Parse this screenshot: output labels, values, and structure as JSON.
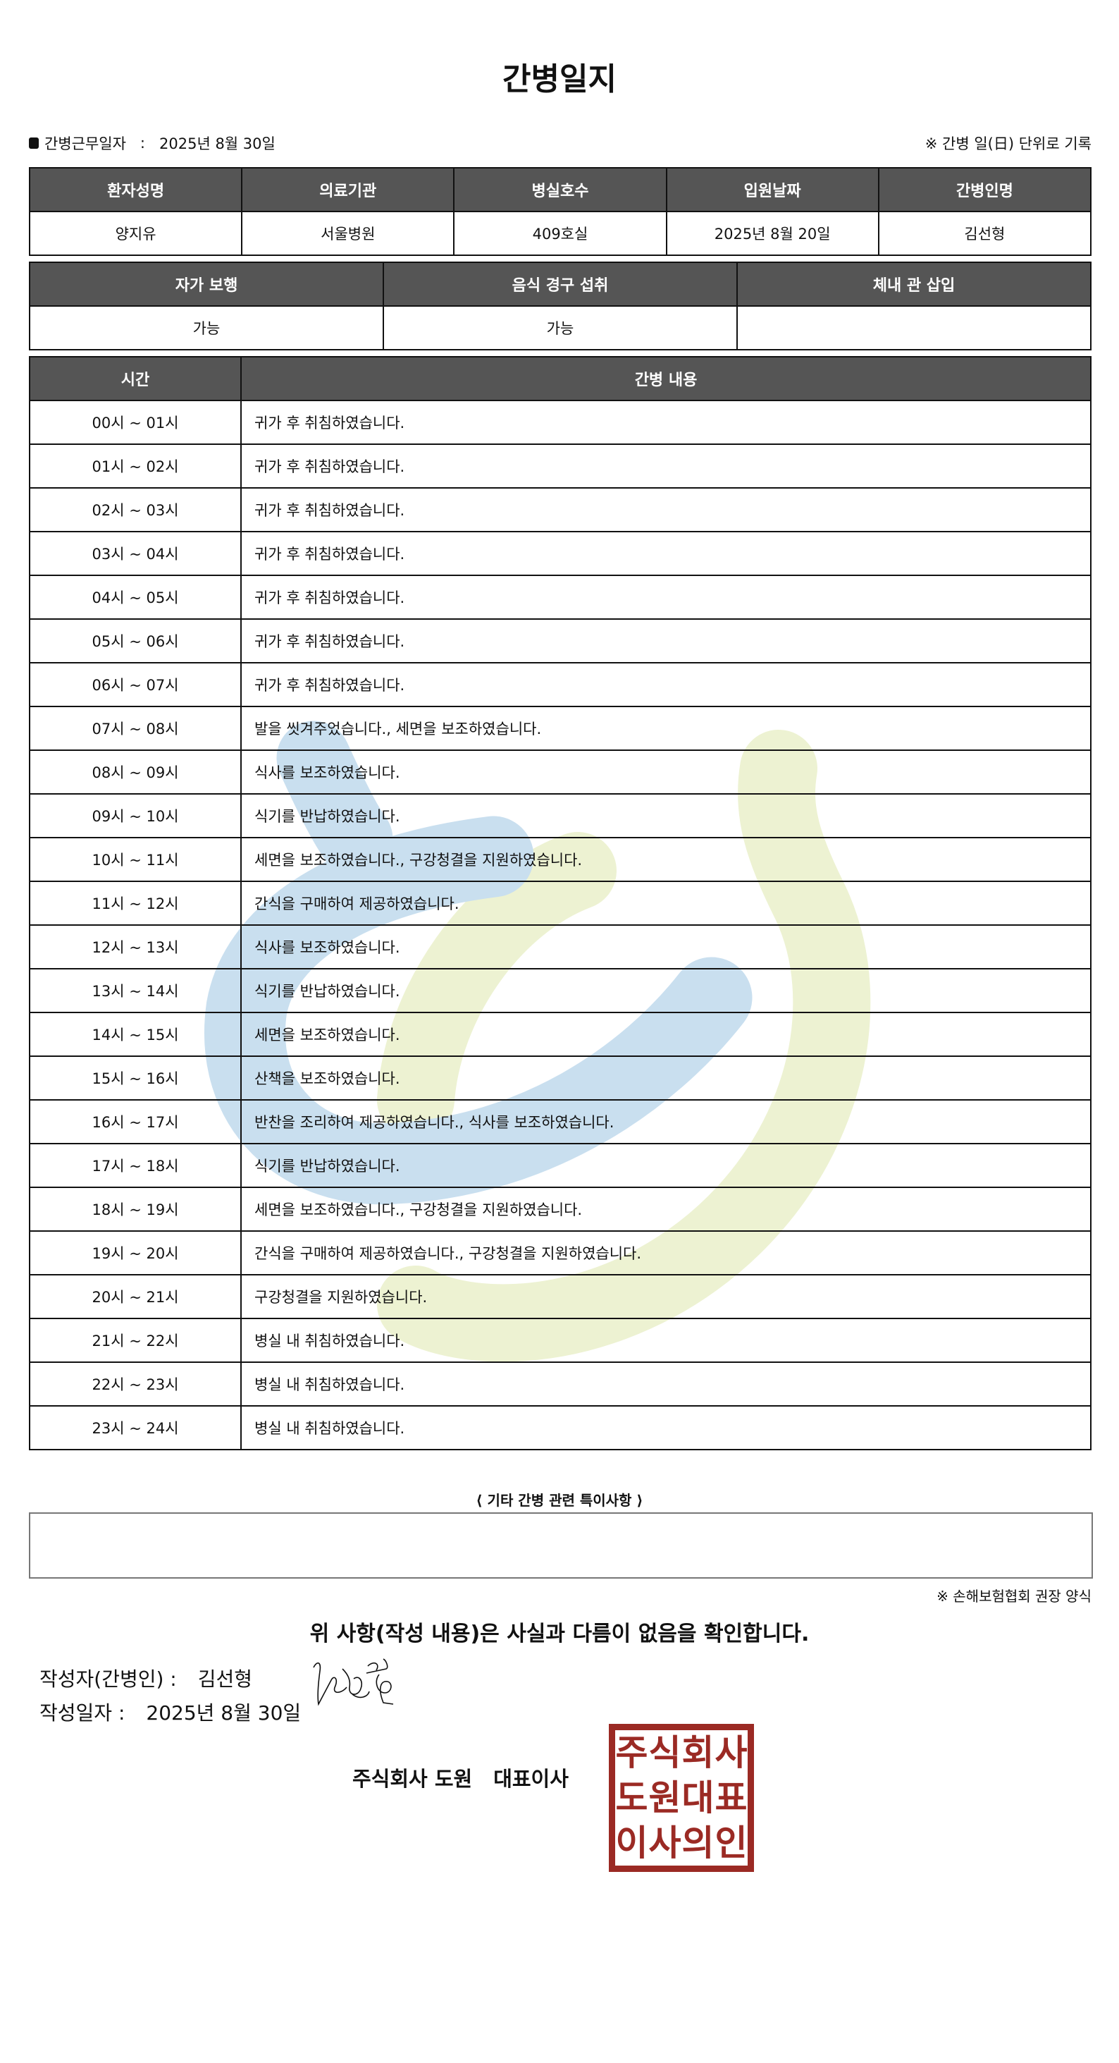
{
  "title": "간병일지",
  "work_date": {
    "label": "간병근무일자",
    "separator": ":",
    "value": "2025년 8월 30일"
  },
  "record_note": "※ 간병 일(日) 단위로 기록",
  "patient_table": {
    "headers": [
      "환자성명",
      "의료기관",
      "병실호수",
      "입원날짜",
      "간병인명"
    ],
    "values": [
      "양지유",
      "서울병원",
      "409호실",
      "2025년 8월 20일",
      "김선형"
    ]
  },
  "status_table": {
    "headers": [
      "자가 보행",
      "음식 경구 섭취",
      "체내 관 삽입"
    ],
    "values": [
      "가능",
      "가능",
      ""
    ]
  },
  "log_table": {
    "headers": [
      "시간",
      "간병 내용"
    ],
    "rows": [
      {
        "time": "00시 ~ 01시",
        "content": "귀가 후 취침하였습니다."
      },
      {
        "time": "01시 ~ 02시",
        "content": "귀가 후 취침하였습니다."
      },
      {
        "time": "02시 ~ 03시",
        "content": "귀가 후 취침하였습니다."
      },
      {
        "time": "03시 ~ 04시",
        "content": "귀가 후 취침하였습니다."
      },
      {
        "time": "04시 ~ 05시",
        "content": "귀가 후 취침하였습니다."
      },
      {
        "time": "05시 ~ 06시",
        "content": "귀가 후 취침하였습니다."
      },
      {
        "time": "06시 ~ 07시",
        "content": "귀가 후 취침하였습니다."
      },
      {
        "time": "07시 ~ 08시",
        "content": "발을 씻겨주었습니다., 세면을 보조하였습니다."
      },
      {
        "time": "08시 ~ 09시",
        "content": "식사를 보조하였습니다."
      },
      {
        "time": "09시 ~ 10시",
        "content": "식기를 반납하였습니다."
      },
      {
        "time": "10시 ~ 11시",
        "content": "세면을 보조하였습니다., 구강청결을 지원하였습니다."
      },
      {
        "time": "11시 ~ 12시",
        "content": "간식을 구매하여 제공하였습니다."
      },
      {
        "time": "12시 ~ 13시",
        "content": "식사를 보조하였습니다."
      },
      {
        "time": "13시 ~ 14시",
        "content": "식기를 반납하였습니다."
      },
      {
        "time": "14시 ~ 15시",
        "content": "세면을 보조하였습니다."
      },
      {
        "time": "15시 ~ 16시",
        "content": "산책을 보조하였습니다."
      },
      {
        "time": "16시 ~ 17시",
        "content": "반찬을 조리하여 제공하였습니다., 식사를 보조하였습니다."
      },
      {
        "time": "17시 ~ 18시",
        "content": "식기를 반납하였습니다."
      },
      {
        "time": "18시 ~ 19시",
        "content": "세면을 보조하였습니다., 구강청결을 지원하였습니다."
      },
      {
        "time": "19시 ~ 20시",
        "content": "간식을 구매하여 제공하였습니다., 구강청결을 지원하였습니다."
      },
      {
        "time": "20시 ~ 21시",
        "content": "구강청결을 지원하였습니다."
      },
      {
        "time": "21시 ~ 22시",
        "content": "병실 내 취침하였습니다."
      },
      {
        "time": "22시 ~ 23시",
        "content": "병실 내 취침하였습니다."
      },
      {
        "time": "23시 ~ 24시",
        "content": "병실 내 취침하였습니다."
      }
    ]
  },
  "notes": {
    "label": "⟨ 기타 간병 관련 특이사항 ⟩",
    "value": ""
  },
  "form_note": "※ 손해보험협회 권장 양식",
  "confirmation": "위 사항(작성 내용)은 사실과 다름이 없음을 확인합니다.",
  "writer": {
    "label": "작성자(간병인) :",
    "value": "김선형"
  },
  "written_date": {
    "label": "작성일자 :",
    "value": "2025년 8월 30일"
  },
  "company": {
    "name": "주식회사 도원",
    "role": "대표이사"
  },
  "stamp": {
    "text": [
      "주",
      "식",
      "회",
      "사",
      "도",
      "원",
      "대",
      "표",
      "이",
      "사",
      "의",
      "인"
    ],
    "color": "#9b2a24"
  },
  "colors": {
    "header_bg": "#555555",
    "watermark_blue": "#c9dfef",
    "watermark_green": "#edf2d2"
  }
}
